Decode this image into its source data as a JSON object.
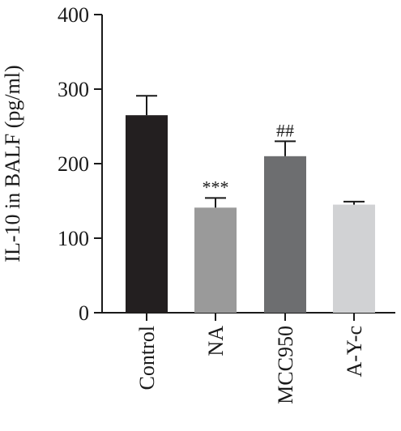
{
  "chart_data": {
    "type": "bar",
    "title": "",
    "xlabel": "",
    "ylabel": "IL-10 in BALF (pg/ml)",
    "ylim": [
      0,
      400
    ],
    "yticks": [
      "0",
      "100",
      "200",
      "300",
      "400"
    ],
    "categories": [
      "Control",
      "NA",
      "MCC950",
      "A-Y-c"
    ],
    "values": [
      265,
      141,
      210,
      145
    ],
    "errors": [
      26,
      13,
      20,
      4
    ],
    "annotations": [
      "",
      "***",
      "##",
      ""
    ],
    "colors": [
      "#231f20",
      "#9a9a9a",
      "#6d6e70",
      "#d1d2d4"
    ],
    "grid": false,
    "legend": "none"
  }
}
